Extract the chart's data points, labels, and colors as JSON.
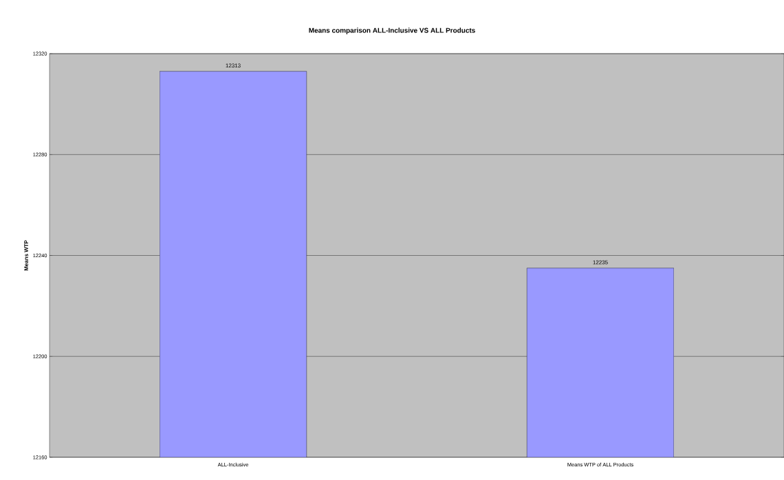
{
  "chart_data": {
    "type": "bar",
    "title": "Means comparison ALL-Inclusive VS ALL Products",
    "ylabel": "Means WTP",
    "categories": [
      "ALL-Inclusive",
      "Means WTP of ALL Products"
    ],
    "values": [
      12313,
      12235
    ],
    "color": "#9999ff",
    "ylim": [
      12160,
      12320
    ],
    "yticks": [
      12160,
      12200,
      12240,
      12280,
      12320
    ],
    "grid": "y",
    "data_labels": true
  }
}
